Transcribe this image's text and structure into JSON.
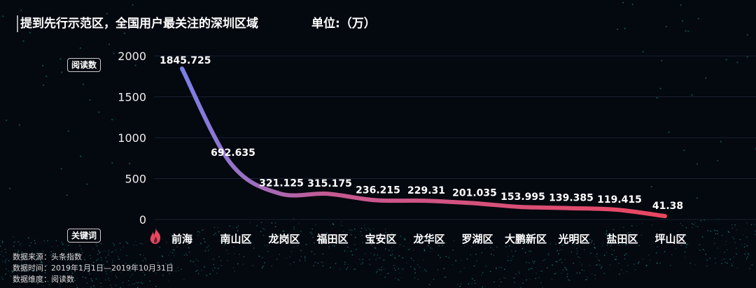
{
  "header": {
    "title": "提到先行示范区，全国用户最关注的深圳区域",
    "unit": "单位:（万）"
  },
  "labels": {
    "y_box": "阅读数",
    "x_box": "关键词"
  },
  "notes": [
    "数据来源：头条指数",
    "数据时间：2019年1月1日—2019年10月31日",
    "数据维度：阅读数"
  ],
  "colors": {
    "line_start": "#7a80e6",
    "line_end": "#ea4660",
    "background": "#04080f",
    "fire_icon": "#e8455f"
  },
  "chart_data": {
    "type": "line",
    "title": "",
    "xlabel": "",
    "ylabel": "",
    "ylim": [
      0,
      2000
    ],
    "yticks": [
      "0",
      "500",
      "1000",
      "1500",
      "2000"
    ],
    "grid": true,
    "categories": [
      "前海",
      "南山区",
      "龙岗区",
      "福田区",
      "宝安区",
      "龙华区",
      "罗湖区",
      "大鹏新区",
      "光明区",
      "盐田区",
      "坪山区"
    ],
    "values": [
      1845.725,
      692.635,
      321.125,
      315.175,
      236.215,
      229.31,
      201.035,
      153.995,
      139.385,
      119.415,
      41.38
    ],
    "data_labels": [
      "1845.725",
      "692.635",
      "321.125",
      "315.175",
      "236.215",
      "229.31",
      "201.035",
      "153.995",
      "139.385",
      "119.415",
      "41.38"
    ]
  }
}
